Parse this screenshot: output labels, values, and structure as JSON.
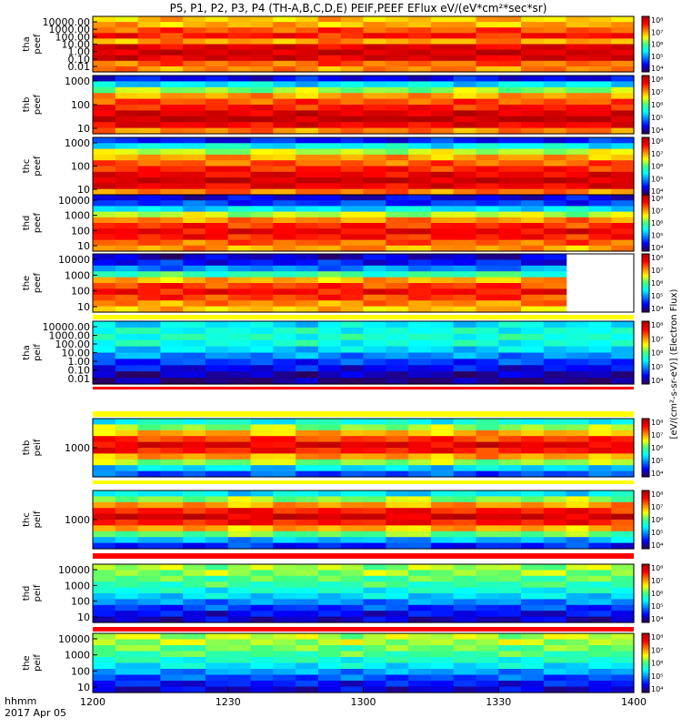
{
  "chart_data": {
    "type": "heatmap",
    "title": "P5, P1, P2, P3, P4 (TH-A,B,C,D,E) PEIF,PEEF EFlux eV/(eV*cm²*sec*sr)",
    "colorbar_unit_label": "[eV/(cm²-s-sr-eV)] (Electron Flux)",
    "time_label": "hhmm",
    "date_label": "2017 Apr 05",
    "x_ticks": [
      "1200",
      "1230",
      "1300",
      "1330",
      "1400"
    ],
    "x_range_minutes": [
      0,
      120
    ],
    "colormap": [
      "#2a0060",
      "#0000ff",
      "#0080ff",
      "#00ffff",
      "#40ff80",
      "#ffff00",
      "#ff8000",
      "#ff0000",
      "#b00000"
    ],
    "panels": [
      {
        "name": "tha peef",
        "label_line1": "tha",
        "label_line2": "peef",
        "y_ticks": [
          "10000.00",
          "1000.00",
          "100.00",
          "10.00",
          "1.00",
          "0.10",
          "0.01"
        ],
        "cbar_ticks": [
          "10⁸",
          "10⁷",
          "10⁶",
          "10⁵",
          "10⁴"
        ],
        "levels": [
          0.68,
          0.7,
          0.8,
          0.86,
          0.72,
          0.92,
          0.95,
          0.93,
          0.78,
          0.74
        ]
      },
      {
        "name": "thb peef",
        "label_line1": "thb",
        "label_line2": "peef",
        "y_ticks": [
          "1000",
          "100",
          "10"
        ],
        "cbar_ticks": [
          "10⁸",
          "10⁷",
          "10⁶",
          "10⁵",
          "10⁴"
        ],
        "levels": [
          0.12,
          0.35,
          0.55,
          0.72,
          0.8,
          0.86,
          0.93,
          0.98,
          0.9,
          0.75
        ]
      },
      {
        "name": "thc peef",
        "label_line1": "thc",
        "label_line2": "peef",
        "y_ticks": [
          "1000",
          "100",
          "10"
        ],
        "cbar_ticks": [
          "10⁸",
          "10⁷",
          "10⁶",
          "10⁵",
          "10⁴"
        ],
        "levels": [
          0.14,
          0.38,
          0.58,
          0.72,
          0.78,
          0.85,
          0.9,
          0.96,
          0.9,
          0.76
        ]
      },
      {
        "name": "thd peef",
        "label_line1": "thd",
        "label_line2": "peef",
        "y_ticks": [
          "10000",
          "1000",
          "100",
          "10"
        ],
        "cbar_ticks": [
          "10⁸",
          "10⁷",
          "10⁶",
          "10⁵",
          "10⁴"
        ],
        "levels": [
          0.1,
          0.18,
          0.35,
          0.58,
          0.74,
          0.84,
          0.9,
          0.86,
          0.78,
          0.72
        ]
      },
      {
        "name": "the peef",
        "label_line1": "the",
        "label_line2": "peef",
        "y_ticks": [
          "10000",
          "1000",
          "100",
          "10"
        ],
        "cbar_ticks": [
          "10⁸",
          "10⁷",
          "10⁶",
          "10⁵",
          "10⁴"
        ],
        "levels": [
          0.08,
          0.14,
          0.26,
          0.46,
          0.7,
          0.82,
          0.88,
          0.82,
          0.74,
          0.68
        ],
        "data_end_minute": 105
      },
      {
        "name": "tha peif",
        "label_line1": "tha",
        "label_line2": "peif",
        "y_ticks": [
          "10000.00",
          "1000.00",
          "100.00",
          "10.00",
          "1.00",
          "0.10",
          "0.01"
        ],
        "cbar_ticks": [
          "10⁸",
          "10⁷",
          "10⁶",
          "10⁵",
          "10⁴"
        ],
        "levels": [
          0.36,
          0.4,
          0.42,
          0.4,
          0.34,
          0.26,
          0.18,
          0.12,
          0.06,
          0.02
        ]
      },
      {
        "name": "thb peif",
        "label_line1": "thb",
        "label_line2": "peif",
        "y_ticks": [
          "1000"
        ],
        "cbar_ticks": [
          "10⁸",
          "10⁷",
          "10⁶",
          "10⁵",
          "10⁴"
        ],
        "levels": [
          0.4,
          0.55,
          0.7,
          0.82,
          0.92,
          0.86,
          0.72,
          0.55,
          0.34,
          0.2
        ]
      },
      {
        "name": "thc peif",
        "label_line1": "thc",
        "label_line2": "peif",
        "y_ticks": [
          "1000"
        ],
        "cbar_ticks": [
          "10⁸",
          "10⁷",
          "10⁶",
          "10⁵",
          "10⁴"
        ],
        "levels": [
          0.36,
          0.55,
          0.72,
          0.86,
          0.94,
          0.86,
          0.7,
          0.52,
          0.3,
          0.16
        ]
      },
      {
        "name": "thd peif",
        "label_line1": "thd",
        "label_line2": "peif",
        "y_ticks": [
          "10000",
          "1000",
          "100",
          "10"
        ],
        "cbar_ticks": [
          "10⁸",
          "10⁷",
          "10⁶",
          "10⁵",
          "10⁴"
        ],
        "levels": [
          0.56,
          0.55,
          0.5,
          0.46,
          0.4,
          0.34,
          0.26,
          0.18,
          0.12,
          0.08
        ]
      },
      {
        "name": "the peif",
        "label_line1": "the",
        "label_line2": "peif",
        "y_ticks": [
          "10000",
          "1000",
          "100",
          "10"
        ],
        "cbar_ticks": [
          "10⁸",
          "10⁷",
          "10⁶",
          "10⁵",
          "10⁴"
        ],
        "levels": [
          0.58,
          0.57,
          0.52,
          0.48,
          0.42,
          0.36,
          0.28,
          0.2,
          0.14,
          0.09
        ]
      }
    ]
  }
}
